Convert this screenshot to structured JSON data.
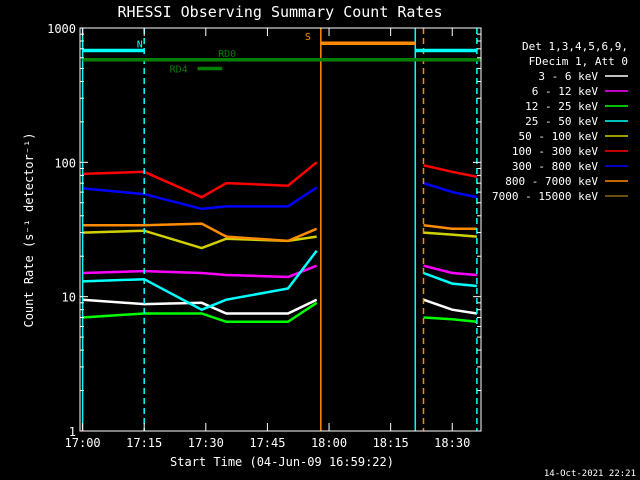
{
  "chart_data": {
    "type": "line",
    "title": "RHESSI Observing Summary Count Rates",
    "xlabel": "Start Time (04-Jun-09 16:59:22)",
    "ylabel": "Count Rate (s⁻¹ detector⁻¹)",
    "yscale": "log",
    "ylim": [
      1,
      1000
    ],
    "xlim": [
      "17:00",
      "18:37"
    ],
    "x_ticks": [
      "17:00",
      "17:15",
      "17:30",
      "17:45",
      "18:00",
      "18:15",
      "18:30"
    ],
    "y_ticks": [
      "1",
      "10",
      "100",
      "1000"
    ],
    "legend_header": [
      "Det 1,3,4,5,6,9,",
      "FDecim 1, Att 0"
    ],
    "legend_position": "right",
    "timestamp": "14-Oct-2021 22:21",
    "series": [
      {
        "name": "3 - 6 keV",
        "color": "#ffffff",
        "segments": [
          {
            "x": [
              "17:00",
              "17:15",
              "17:29",
              "17:35",
              "17:50",
              "17:57"
            ],
            "y": [
              9.5,
              8.8,
              9.0,
              7.5,
              7.5,
              9.5
            ]
          },
          {
            "x": [
              "18:23",
              "18:30",
              "18:36"
            ],
            "y": [
              9.5,
              8.0,
              7.5
            ]
          }
        ]
      },
      {
        "name": "6 - 12 keV",
        "color": "#ff00ff",
        "segments": [
          {
            "x": [
              "17:00",
              "17:15",
              "17:29",
              "17:35",
              "17:50",
              "17:57"
            ],
            "y": [
              15,
              15.5,
              15,
              14.5,
              14,
              17
            ]
          },
          {
            "x": [
              "18:23",
              "18:30",
              "18:36"
            ],
            "y": [
              17,
              15,
              14.5
            ]
          }
        ]
      },
      {
        "name": "12 - 25 keV",
        "color": "#00ff00",
        "segments": [
          {
            "x": [
              "17:00",
              "17:15",
              "17:29",
              "17:35",
              "17:50",
              "17:57"
            ],
            "y": [
              7,
              7.5,
              7.5,
              6.5,
              6.5,
              9
            ]
          },
          {
            "x": [
              "18:23",
              "18:30",
              "18:36"
            ],
            "y": [
              7,
              6.8,
              6.5
            ]
          }
        ]
      },
      {
        "name": "25 - 50 keV",
        "color": "#00ffff",
        "segments": [
          {
            "x": [
              "17:00",
              "17:15",
              "17:29",
              "17:35",
              "17:50",
              "17:57"
            ],
            "y": [
              13,
              13.5,
              8.0,
              9.5,
              11.5,
              22
            ]
          },
          {
            "x": [
              "18:23",
              "18:30",
              "18:36"
            ],
            "y": [
              15,
              12.5,
              12
            ]
          }
        ]
      },
      {
        "name": "50 - 100 keV",
        "color": "#d0d000",
        "segments": [
          {
            "x": [
              "17:00",
              "17:15",
              "17:29",
              "17:35",
              "17:50",
              "17:57"
            ],
            "y": [
              30,
              31,
              23,
              27,
              26,
              28
            ]
          },
          {
            "x": [
              "18:23",
              "18:30",
              "18:36"
            ],
            "y": [
              30,
              29,
              28
            ]
          }
        ]
      },
      {
        "name": "100 - 300 keV",
        "color": "#ff0000",
        "segments": [
          {
            "x": [
              "17:00",
              "17:15",
              "17:29",
              "17:35",
              "17:50",
              "17:57"
            ],
            "y": [
              82,
              85,
              55,
              70,
              67,
              100
            ]
          },
          {
            "x": [
              "18:23",
              "18:30",
              "18:36"
            ],
            "y": [
              95,
              85,
              78
            ]
          }
        ]
      },
      {
        "name": "300 - 800 keV",
        "color": "#0000ff",
        "segments": [
          {
            "x": [
              "17:00",
              "17:15",
              "17:29",
              "17:35",
              "17:50",
              "17:57"
            ],
            "y": [
              64,
              58,
              45,
              47,
              47,
              65
            ]
          },
          {
            "x": [
              "18:23",
              "18:30",
              "18:36"
            ],
            "y": [
              70,
              60,
              55
            ]
          }
        ]
      },
      {
        "name": "800 - 7000 keV",
        "color": "#ff8c00",
        "segments": [
          {
            "x": [
              "17:00",
              "17:15",
              "17:29",
              "17:35",
              "17:50",
              "17:57"
            ],
            "y": [
              34,
              34,
              35,
              28,
              26,
              32
            ]
          },
          {
            "x": [
              "18:23",
              "18:30",
              "18:36"
            ],
            "y": [
              34,
              32,
              32
            ]
          }
        ]
      },
      {
        "name": "7000 - 15000 keV",
        "color": "#8b6914",
        "segments": []
      }
    ],
    "annotations": {
      "bars": [
        {
          "label": "N",
          "color": "#00ffff",
          "x": [
            "17:00",
            "17:15"
          ],
          "y": 680
        },
        {
          "label": "",
          "color": "#00ffff",
          "x": [
            "18:21",
            "18:36"
          ],
          "y": 680
        },
        {
          "label": "S",
          "color": "#ff8c00",
          "x": [
            "17:58",
            "18:21"
          ],
          "y": 770
        },
        {
          "label": "RD0",
          "color": "#008000",
          "x": [
            "17:00",
            "18:37"
          ],
          "y": 580
        },
        {
          "label": "RD4",
          "color": "#008000",
          "x": [
            "17:28",
            "17:34"
          ],
          "y": 500
        }
      ],
      "vlines": [
        {
          "x": "17:00",
          "color": "#00ffff",
          "style": "solid"
        },
        {
          "x": "17:15",
          "color": "#00ffff",
          "style": "dashed"
        },
        {
          "x": "17:58",
          "color": "#ff8c00",
          "style": "solid"
        },
        {
          "x": "18:21",
          "color": "#00ffff",
          "style": "solid"
        },
        {
          "x": "18:23",
          "color": "#ff8c00",
          "style": "dashed"
        },
        {
          "x": "18:36",
          "color": "#00ffff",
          "style": "dashed"
        }
      ]
    }
  }
}
